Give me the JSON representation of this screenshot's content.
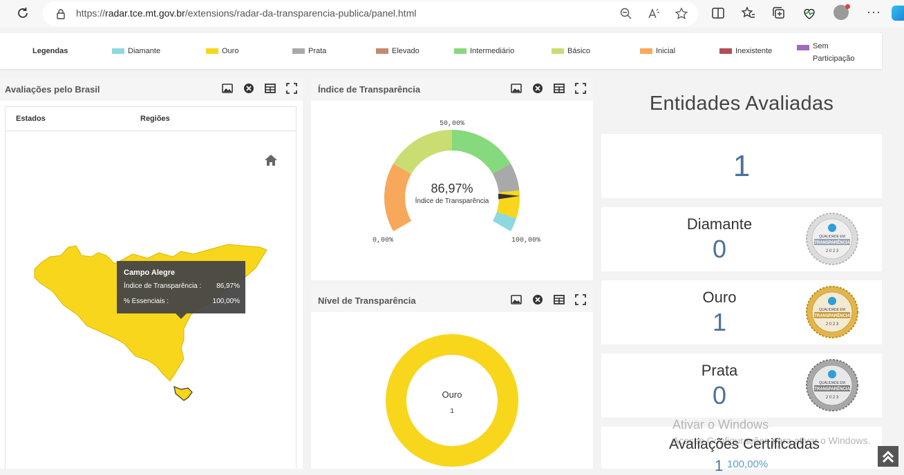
{
  "browser": {
    "url_prefix": "https://",
    "url_host": "radar.tce.mt.gov.br",
    "url_path": "/extensions/radar-da-transparencia-publica/panel.html"
  },
  "legend": {
    "title": "Legendas",
    "items": [
      {
        "label": "Diamante",
        "color": "#8ed8e0"
      },
      {
        "label": "Ouro",
        "color": "#f8d61c"
      },
      {
        "label": "Prata",
        "color": "#a9a9a9"
      },
      {
        "label": "Elevado",
        "color": "#c48a6c"
      },
      {
        "label": "Intermediário",
        "color": "#86d97c"
      },
      {
        "label": "Básico",
        "color": "#c9dd73"
      },
      {
        "label": "Inicial",
        "color": "#f8a85a"
      },
      {
        "label": "Inexistente",
        "color": "#b24e58"
      },
      {
        "label_line1": "Sem",
        "label_line2": "Participação",
        "color": "#9e6bbf"
      }
    ]
  },
  "map_panel": {
    "title": "Avaliações pelo Brasil",
    "tabs": [
      "Estados",
      "Regiões"
    ],
    "tooltip": {
      "title": "Campo Alegre",
      "rows": [
        {
          "label": "Índice de Transparência :",
          "value": "86,97%"
        },
        {
          "label": "% Essenciais :",
          "value": "100,00%"
        }
      ]
    }
  },
  "gauge_panel": {
    "title": "Índice de Transparência",
    "value": "86,97%",
    "value_number": 86.97,
    "caption": "Índice de Transparência",
    "min_label": "0,00%",
    "mid_label": "50,00%",
    "max_label": "100,00%"
  },
  "nivel_panel": {
    "title": "Nível de Transparência",
    "label": "Ouro",
    "count": "1"
  },
  "entidades": {
    "title": "Entidades Avaliadas",
    "total": "1",
    "cards": [
      {
        "label": "Diamante",
        "value": "0",
        "medal": "diamond-medal"
      },
      {
        "label": "Ouro",
        "value": "1",
        "medal": "gold-medal"
      },
      {
        "label": "Prata",
        "value": "0",
        "medal": "silver-medal"
      }
    ],
    "medal_text": "QUALIDADE EM TRANSPARÊNCIA",
    "medal_year": "2023",
    "certified_title": "Avaliações Certificadas",
    "certified_value": "1",
    "certified_pct": "100,00%"
  },
  "watermark": {
    "line1": "Ativar o Windows",
    "line2": "Acesse Configurações para ativar o Windows."
  }
}
